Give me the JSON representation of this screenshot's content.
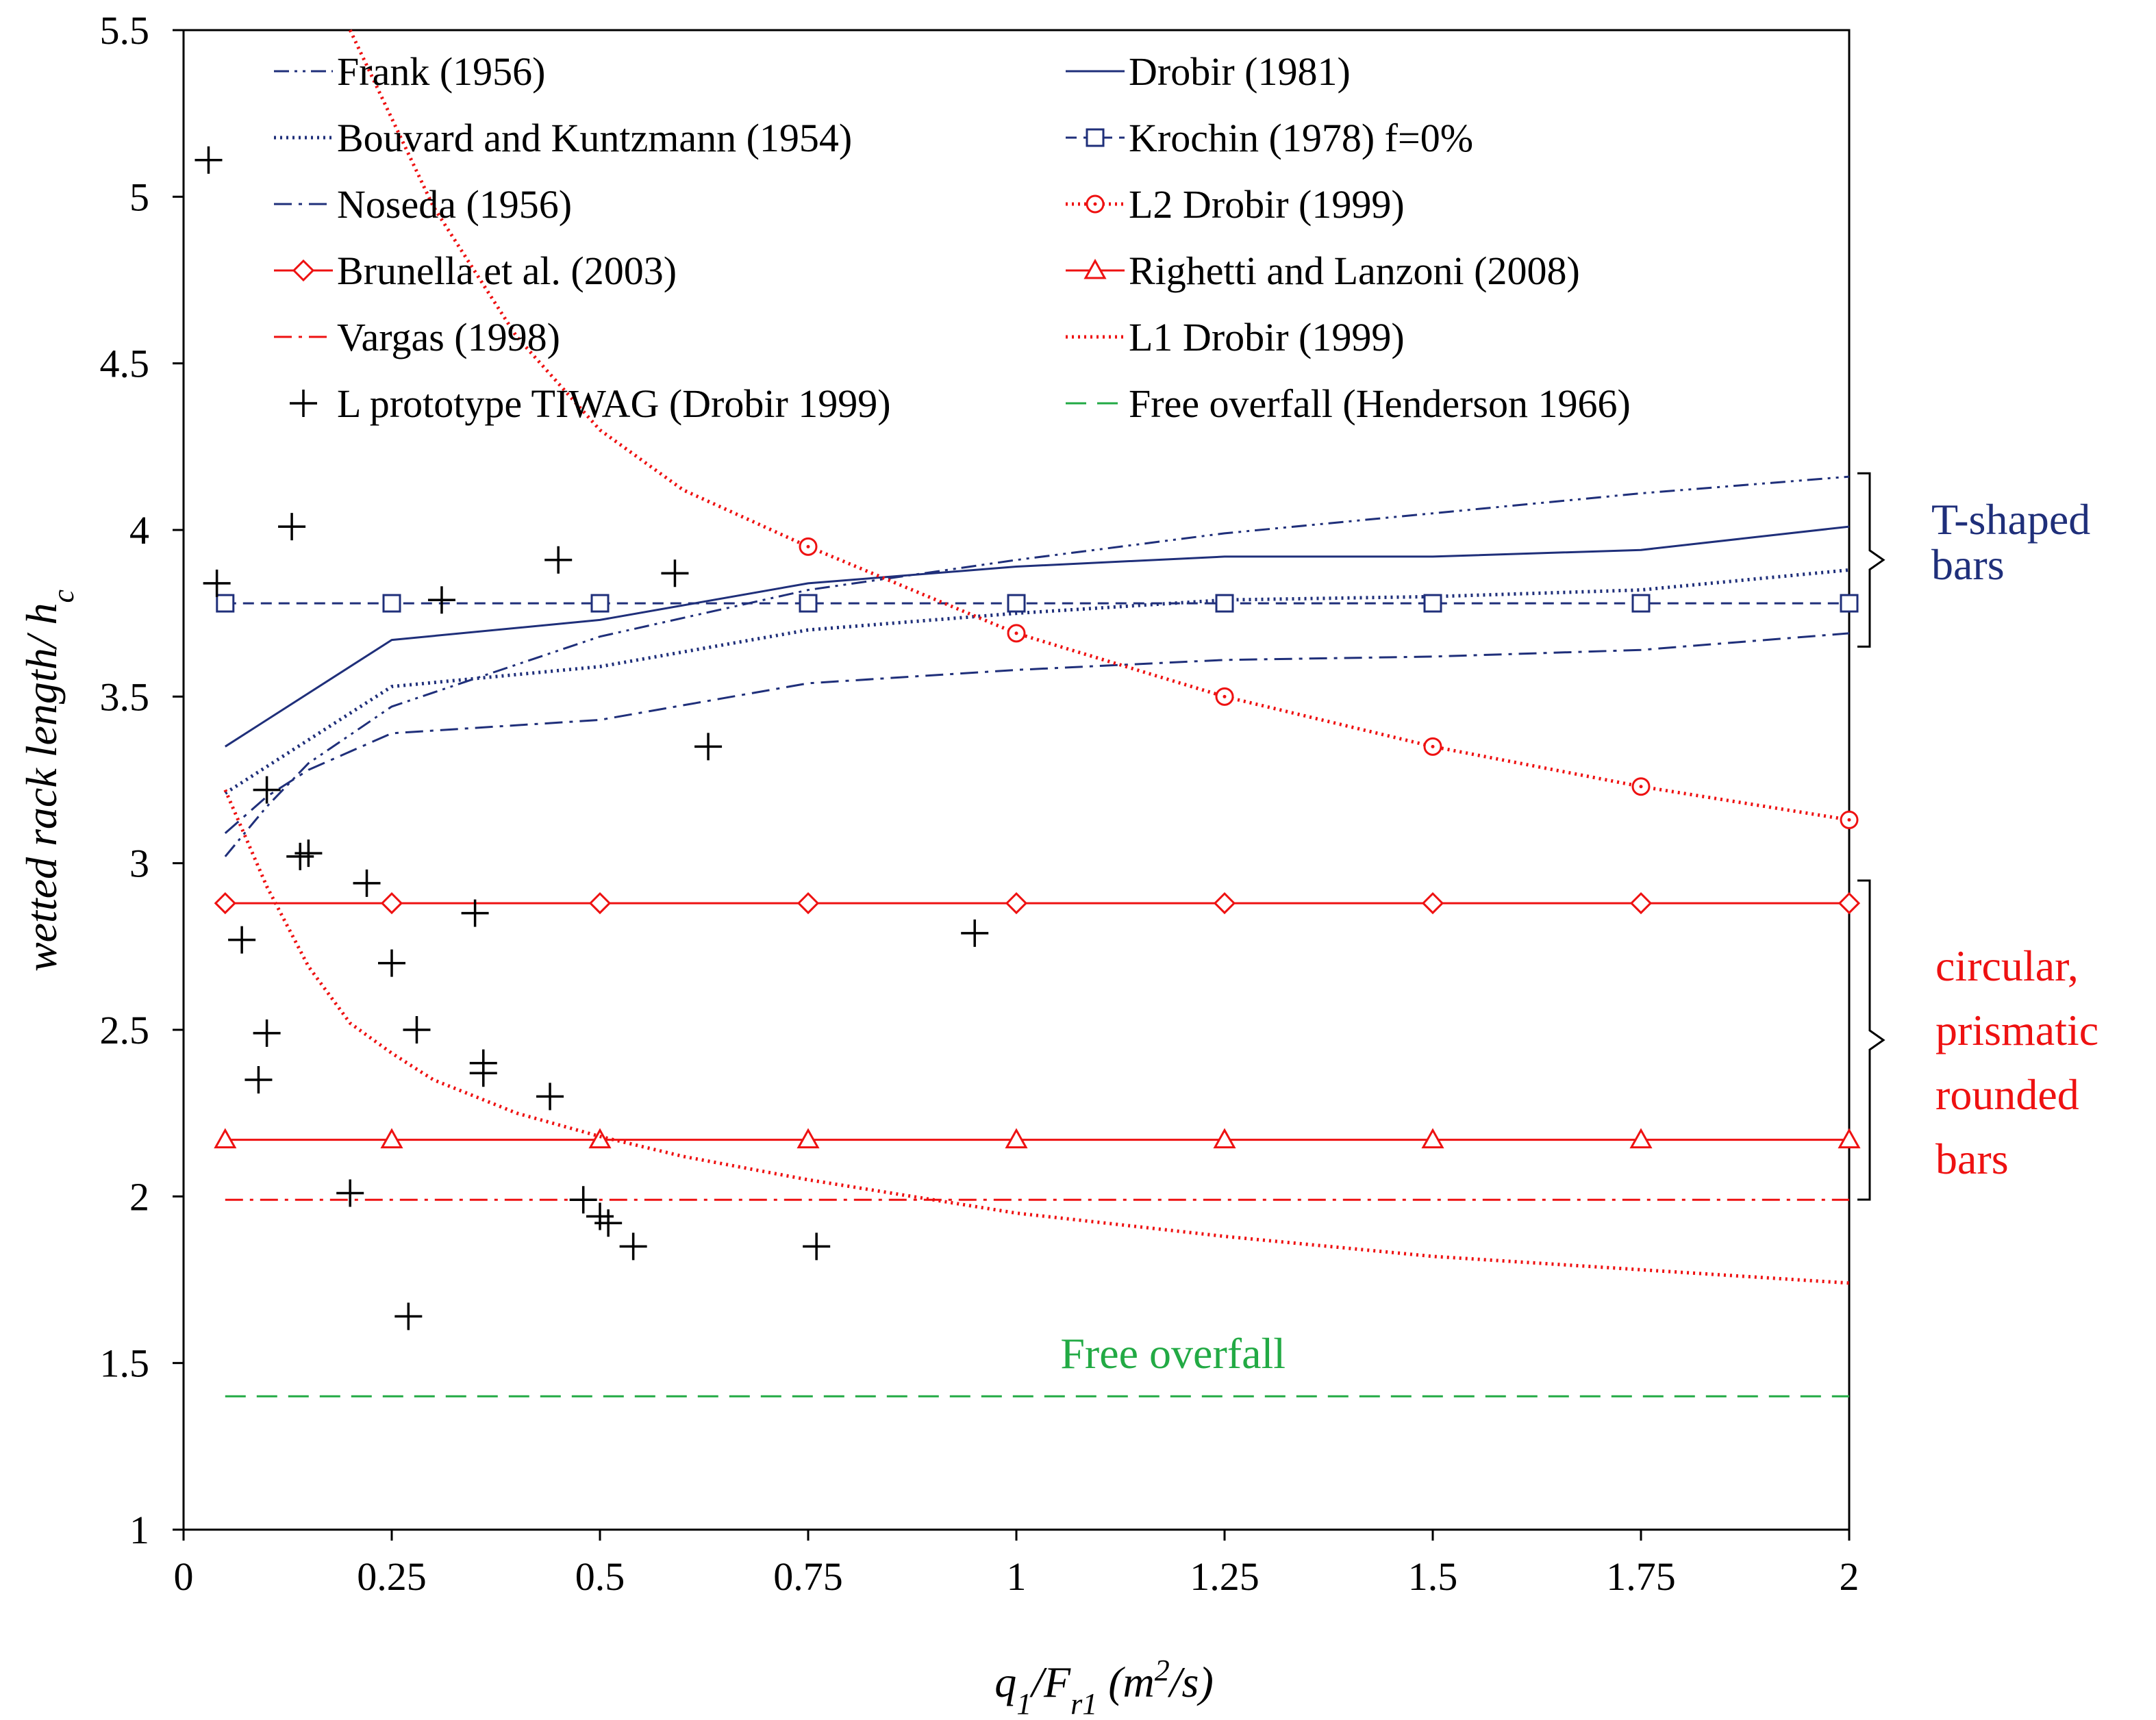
{
  "chart_data": {
    "type": "line",
    "title": "",
    "xlabel": {
      "parts": [
        {
          "text": "q",
          "sub": false
        },
        {
          "text": "1",
          "sub": true
        },
        {
          "text": "/F",
          "sub": false
        },
        {
          "text": "r1",
          "sub": true
        },
        {
          "text": " (m",
          "sub": false
        },
        {
          "text": "2",
          "sup": true
        },
        {
          "text": "/s)",
          "sub": false
        }
      ]
    },
    "ylabel": {
      "parts": [
        {
          "text": "wetted rack length/ h",
          "sub": false
        },
        {
          "text": "c",
          "sub": true
        }
      ]
    },
    "xlim": [
      0,
      2
    ],
    "ylim": [
      1,
      5.5
    ],
    "x_ticks": [
      "0",
      "0.25",
      "0.5",
      "0.75",
      "1",
      "1.25",
      "1.5",
      "1.75",
      "2"
    ],
    "x_tick_values": [
      0,
      0.25,
      0.5,
      0.75,
      1,
      1.25,
      1.5,
      1.75,
      2
    ],
    "y_ticks": [
      "1",
      "1.5",
      "2",
      "2.5",
      "3",
      "3.5",
      "4",
      "4.5",
      "5",
      "5.5"
    ],
    "y_tick_values": [
      1,
      1.5,
      2,
      2.5,
      3,
      3.5,
      4,
      4.5,
      5,
      5.5
    ],
    "grid": false,
    "legend_position": "top",
    "series": [
      {
        "id": "frank",
        "name": "Frank (1956)",
        "color": "#1f2f7a",
        "dash": "dashdotdot",
        "marker": "none",
        "x": [
          0.05,
          0.1,
          0.15,
          0.25,
          0.5,
          0.75,
          1,
          1.25,
          1.5,
          1.75,
          2
        ],
        "y": [
          3.02,
          3.17,
          3.3,
          3.47,
          3.68,
          3.82,
          3.91,
          3.99,
          4.05,
          4.11,
          4.16
        ]
      },
      {
        "id": "drobir81",
        "name": "Drobir (1981)",
        "color": "#1f2f7a",
        "dash": "solid",
        "marker": "none",
        "x": [
          0.05,
          0.25,
          0.5,
          0.75,
          1,
          1.25,
          1.5,
          1.75,
          2
        ],
        "y": [
          3.35,
          3.67,
          3.73,
          3.84,
          3.89,
          3.92,
          3.92,
          3.94,
          4.01
        ]
      },
      {
        "id": "bouvard",
        "name": "Bouvard and Kuntzmann (1954)",
        "color": "#1f2f7a",
        "dash": "dotted",
        "marker": "none",
        "x": [
          0.05,
          0.25,
          0.5,
          0.75,
          1,
          1.25,
          1.5,
          1.75,
          2
        ],
        "y": [
          3.21,
          3.53,
          3.59,
          3.7,
          3.75,
          3.79,
          3.8,
          3.82,
          3.88
        ]
      },
      {
        "id": "krochin",
        "name": "Krochin (1978) f=0%",
        "color": "#1f2f7a",
        "dash": "dashed",
        "marker": "square",
        "x": [
          0.05,
          0.25,
          0.5,
          0.75,
          1,
          1.25,
          1.5,
          1.75,
          2
        ],
        "y": [
          3.78,
          3.78,
          3.78,
          3.78,
          3.78,
          3.78,
          3.78,
          3.78,
          3.78
        ]
      },
      {
        "id": "noseda",
        "name": "Noseda (1956)",
        "color": "#1f2f7a",
        "dash": "dashdot",
        "marker": "none",
        "x": [
          0.05,
          0.1,
          0.15,
          0.25,
          0.5,
          0.75,
          1,
          1.25,
          1.5,
          1.75,
          2
        ],
        "y": [
          3.09,
          3.2,
          3.28,
          3.39,
          3.43,
          3.54,
          3.58,
          3.61,
          3.62,
          3.64,
          3.69
        ]
      },
      {
        "id": "l2drobir",
        "name": "L2 Drobir (1999)",
        "color": "#ee1111",
        "dash": "dotted",
        "marker": "circle",
        "x": [
          0.2,
          0.3,
          0.4,
          0.5,
          0.6,
          0.75,
          1,
          1.25,
          1.5,
          1.75,
          2
        ],
        "y": [
          5.5,
          4.97,
          4.58,
          4.3,
          4.12,
          3.95,
          3.69,
          3.5,
          3.35,
          3.23,
          3.13
        ]
      },
      {
        "id": "brunella",
        "name": "Brunella et al. (2003)",
        "color": "#ee1111",
        "dash": "solid",
        "marker": "diamond",
        "x": [
          0.05,
          0.25,
          0.5,
          0.75,
          1,
          1.25,
          1.5,
          1.75,
          2
        ],
        "y": [
          2.88,
          2.88,
          2.88,
          2.88,
          2.88,
          2.88,
          2.88,
          2.88,
          2.88
        ]
      },
      {
        "id": "righetti",
        "name": "Righetti and Lanzoni (2008)",
        "color": "#ee1111",
        "dash": "solid",
        "marker": "triangle",
        "x": [
          0.05,
          0.25,
          0.5,
          0.75,
          1,
          1.25,
          1.5,
          1.75,
          2
        ],
        "y": [
          2.17,
          2.17,
          2.17,
          2.17,
          2.17,
          2.17,
          2.17,
          2.17,
          2.17
        ]
      },
      {
        "id": "vargas",
        "name": "Vargas (1998)",
        "color": "#ee1111",
        "dash": "dashdot",
        "marker": "none",
        "x": [
          0.05,
          2
        ],
        "y": [
          1.99,
          1.99
        ]
      },
      {
        "id": "l1drobir",
        "name": "L1 Drobir (1999)",
        "color": "#ee1111",
        "dash": "dotted",
        "marker": "none",
        "x": [
          0.05,
          0.1,
          0.15,
          0.2,
          0.25,
          0.3,
          0.35,
          0.4,
          0.5,
          0.6,
          0.75,
          1,
          1.25,
          1.5,
          1.75,
          2
        ],
        "y": [
          3.22,
          2.93,
          2.69,
          2.52,
          2.43,
          2.35,
          2.3,
          2.25,
          2.18,
          2.12,
          2.05,
          1.95,
          1.88,
          1.82,
          1.78,
          1.74
        ]
      },
      {
        "id": "prototype",
        "name": "L prototype  TIWAG (Drobir 1999)",
        "color": "#000000",
        "dash": "none",
        "marker": "plus",
        "x": [
          0.03,
          0.04,
          0.13,
          0.45,
          0.31,
          0.59,
          0.63,
          0.1,
          0.14,
          0.15,
          0.22,
          0.07,
          0.35,
          0.25,
          0.1,
          0.28,
          0.36,
          0.36,
          0.09,
          0.44,
          0.95,
          0.2,
          0.48,
          0.5,
          0.51,
          0.54,
          0.76,
          0.27
        ],
        "y": [
          5.11,
          3.84,
          4.01,
          3.91,
          3.79,
          3.87,
          3.35,
          3.22,
          3.02,
          3.03,
          2.94,
          2.77,
          2.85,
          2.7,
          2.49,
          2.5,
          2.4,
          2.37,
          2.35,
          2.3,
          2.79,
          2.01,
          1.99,
          1.94,
          1.92,
          1.85,
          1.85,
          1.64
        ]
      },
      {
        "id": "freeoverfall",
        "name": "Free overfall (Henderson 1966)",
        "color": "#22aa44",
        "dash": "longdash",
        "marker": "none",
        "x": [
          0.05,
          2
        ],
        "y": [
          1.4,
          1.4
        ]
      }
    ],
    "annotations": [
      {
        "id": "tshaped",
        "lines": [
          "T-shaped",
          "bars"
        ],
        "color": "#1f2f7a",
        "brace_y": [
          3.65,
          4.17
        ]
      },
      {
        "id": "circular",
        "lines": [
          "circular,",
          "prismatic",
          "rounded",
          "bars"
        ],
        "color": "#ee1111",
        "brace_y": [
          1.97,
          3.95
        ]
      },
      {
        "id": "freeoverfall_label",
        "lines": [
          "Free overfall"
        ],
        "color": "#22aa44",
        "at": {
          "x": 1.02,
          "y": 1.53
        }
      }
    ]
  }
}
